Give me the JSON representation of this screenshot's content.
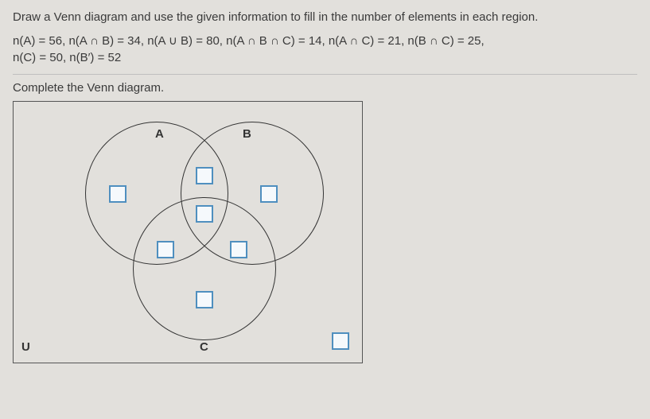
{
  "instructions": "Draw a Venn diagram and use the given information to fill in the number of elements in each region.",
  "given_line1": "n(A) = 56, n(A ∩ B) = 34, n(A ∪ B) = 80, n(A ∩ B ∩ C) = 14, n(A ∩ C) = 21, n(B ∩ C) = 25,",
  "given_line2": "n(C) = 50, n(B′) = 52",
  "prompt": "Complete the Venn diagram.",
  "labels": {
    "A": "A",
    "B": "B",
    "C": "C",
    "U": "U"
  },
  "regions": {
    "A_only": "",
    "B_only": "",
    "C_only": "",
    "AB_only": "",
    "AC_only": "",
    "BC_only": "",
    "ABC": "",
    "outside": ""
  },
  "colors": {
    "input_border": "#4f8fbf",
    "input_bg": "#f5f9fc",
    "page_bg": "#e2e0dc",
    "text": "#3a3a3a",
    "line": "#333"
  }
}
